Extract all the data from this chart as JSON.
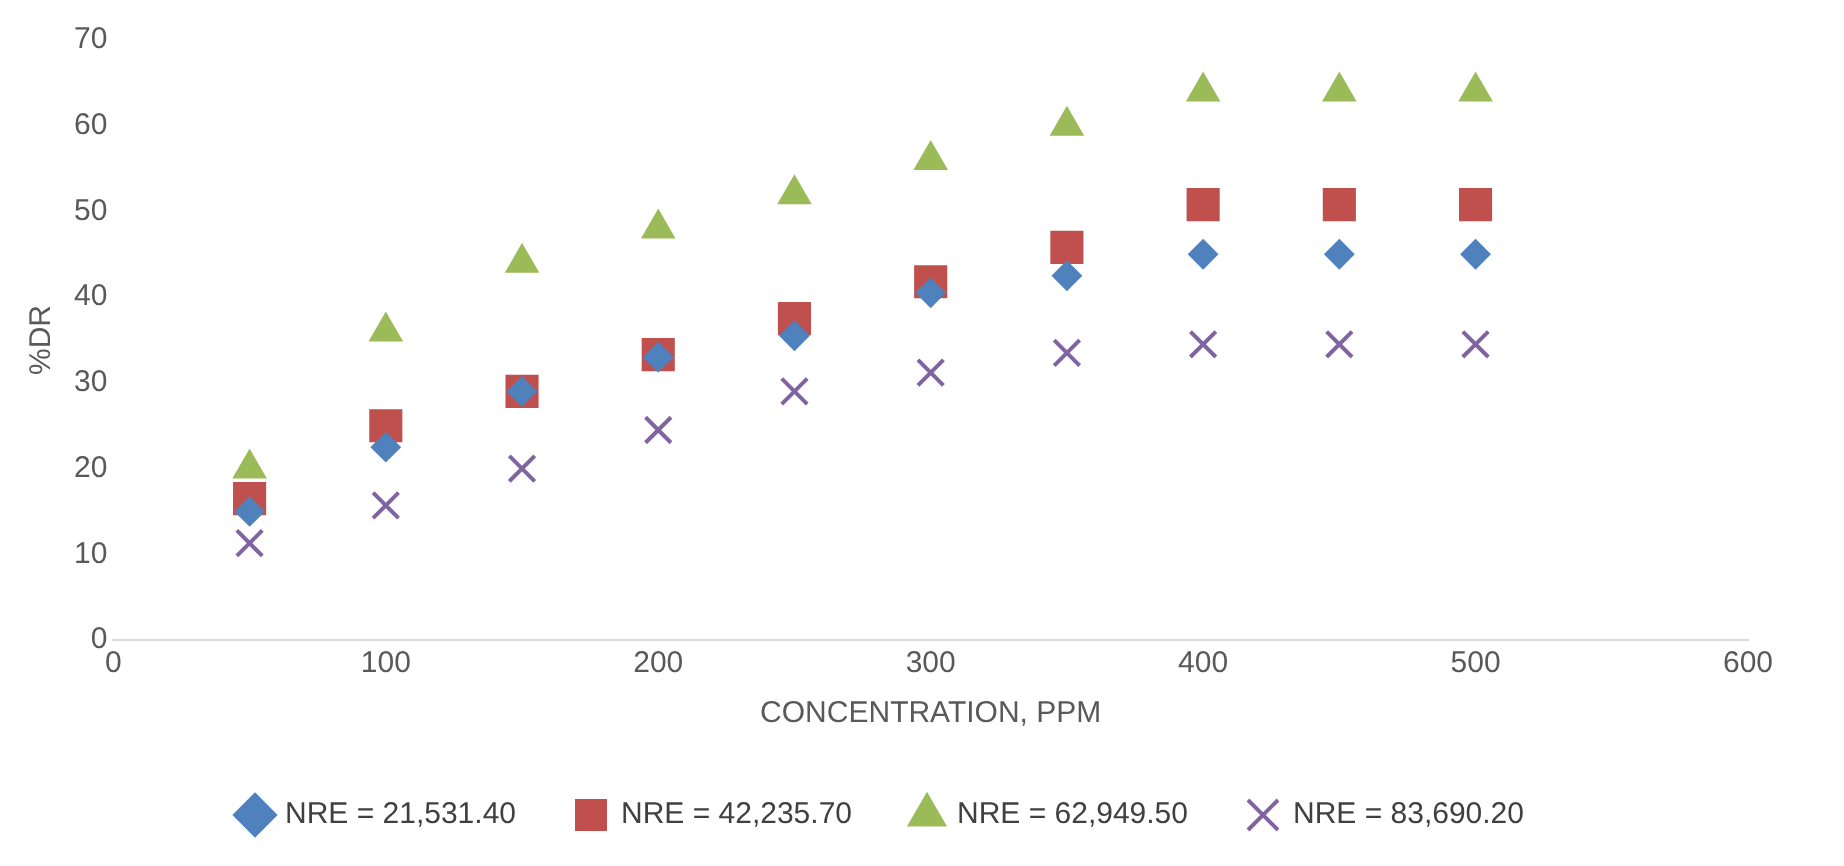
{
  "chart_data": {
    "type": "scatter",
    "xlabel": "CONCENTRATION, PPM",
    "ylabel": "%DR",
    "x": [
      50,
      100,
      150,
      200,
      250,
      300,
      350,
      400,
      450,
      500
    ],
    "xlim": [
      0,
      600
    ],
    "xticks": [
      0,
      100,
      200,
      300,
      400,
      500,
      600
    ],
    "ylim": [
      0,
      70
    ],
    "yticks": [
      0,
      10,
      20,
      30,
      40,
      50,
      60,
      70
    ],
    "grid": false,
    "legend": "bottom",
    "series": [
      {
        "name": "NRE = 21,531.40",
        "color": "#4f81bd",
        "marker": "diamond",
        "values": [
          15,
          22.5,
          29,
          33,
          35.5,
          40.5,
          42.5,
          45,
          45,
          45
        ]
      },
      {
        "name": "NRE = 42,235.70",
        "color": "#c0504d",
        "marker": "square",
        "values": [
          16.5,
          25,
          29,
          33.3,
          37.5,
          41.8,
          45.8,
          50.8,
          50.8,
          50.8
        ]
      },
      {
        "name": "NRE = 62,949.50",
        "color": "#9bbb59",
        "marker": "triangle",
        "values": [
          20,
          36,
          44,
          48,
          52,
          56,
          60,
          64,
          64,
          64
        ]
      },
      {
        "name": "NRE = 83,690.20",
        "color": "#8064a2",
        "marker": "cross",
        "values": [
          11.3,
          15.7,
          20,
          24.5,
          29,
          31.2,
          33.5,
          34.5,
          34.5,
          34.5
        ]
      }
    ]
  }
}
